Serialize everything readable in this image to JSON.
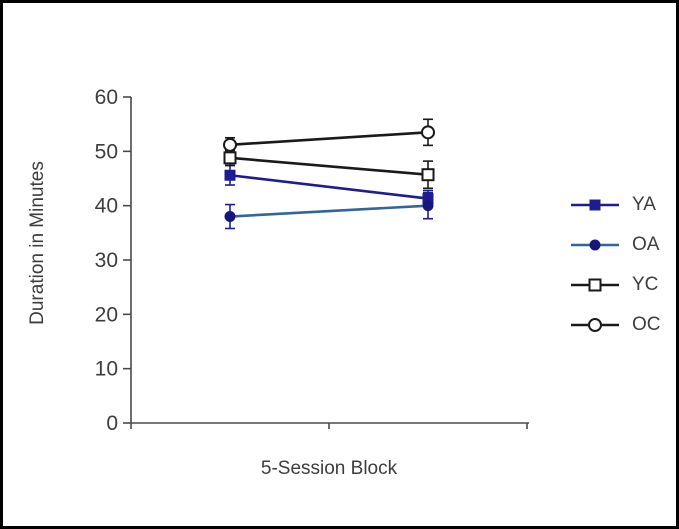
{
  "colors": {
    "background": "#ffffff",
    "figure_border": "#000000",
    "axis": "#4a4a4a",
    "text": "#3d3d3d",
    "navy": "#1d1d91",
    "steel_blue": "#31659c",
    "black_series": "#1a1a1a"
  },
  "chart_data": {
    "type": "line",
    "title": "",
    "xlabel": "5-Session Block",
    "ylabel": "Duration in Minutes",
    "ylim": [
      0,
      60
    ],
    "y_ticks": [
      0,
      10,
      20,
      30,
      40,
      50,
      60
    ],
    "categories": [
      "",
      ""
    ],
    "grid": false,
    "legend_position": "right",
    "error_bars": true,
    "series": [
      {
        "name": "YA",
        "values": [
          45.6,
          41.3
        ],
        "errors": [
          1.8,
          1.5
        ],
        "color": "#1d1d91",
        "marker_color": "#1d1d91",
        "error_color": "#1d1d91",
        "marker": "filled-square"
      },
      {
        "name": "OA",
        "values": [
          38.0,
          40.0
        ],
        "errors": [
          2.2,
          2.4
        ],
        "color": "#31659c",
        "marker_color": "#16167d",
        "error_color": "#1d1d91",
        "marker": "filled-circle"
      },
      {
        "name": "YC",
        "values": [
          48.8,
          45.7
        ],
        "errors": [
          1.4,
          2.5
        ],
        "color": "#1a1a1a",
        "marker_color": "#1a1a1a",
        "error_color": "#1a1a1a",
        "marker": "open-square"
      },
      {
        "name": "OC",
        "values": [
          51.2,
          53.5
        ],
        "errors": [
          1.3,
          2.4
        ],
        "color": "#1a1a1a",
        "marker_color": "#1a1a1a",
        "error_color": "#1a1a1a",
        "marker": "open-circle"
      }
    ]
  }
}
